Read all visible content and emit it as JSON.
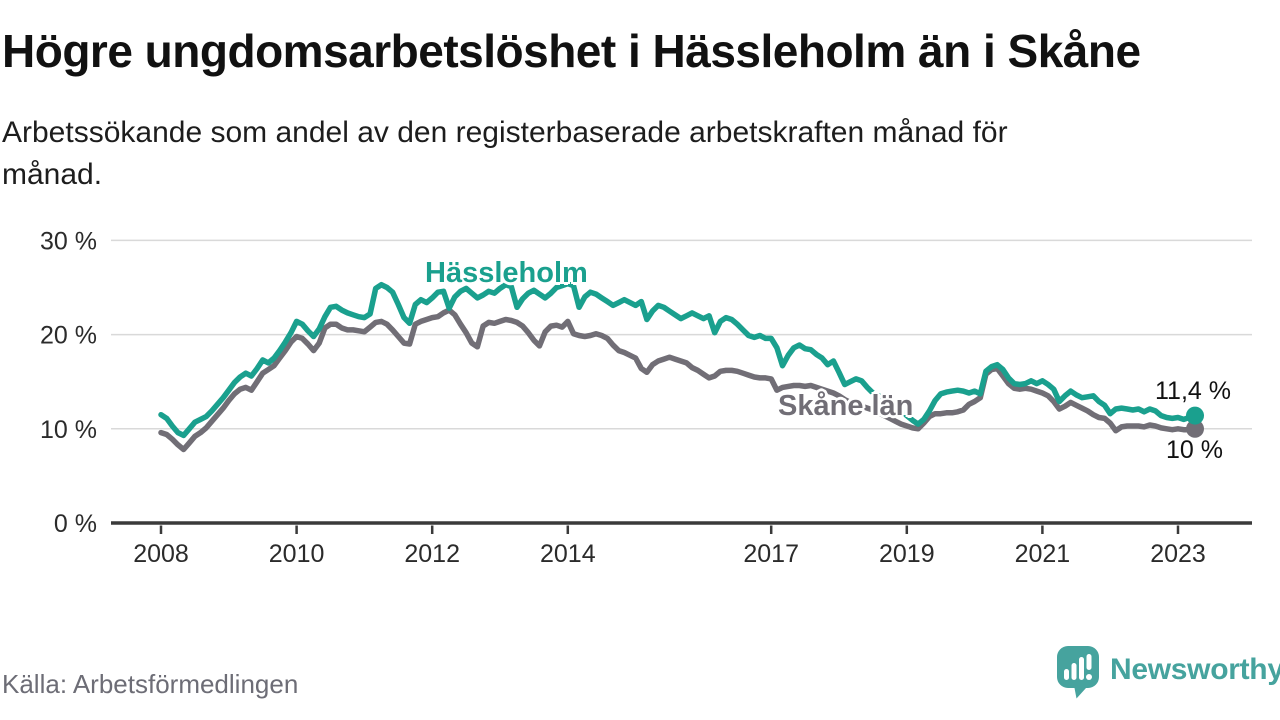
{
  "title": "Högre ungdomsarbetslöshet i Hässleholm än i Skåne",
  "subtitle_lines": [
    "Arbetssökande som andel av den registerbaserade arbetskraften månad för",
    "månad."
  ],
  "source": "Källa: Arbetsförmedlingen",
  "logo": {
    "text": "Newsworthy",
    "icon": "speech-bubble-bar-chart"
  },
  "colors": {
    "hassleholm_teal": "#1aa08e",
    "skane_gray": "#716e76",
    "grid_line": "#d9d9d9",
    "axis_line": "#3a3a3a",
    "heading_text": "#111111",
    "body_text": "#1d1d1d",
    "axis_text": "#2b2b2b",
    "value_text": "#111111",
    "source_text": "#6d6d76",
    "logo_teal": "#46a39e"
  },
  "annotations": {
    "hassleholm_label": "Hässleholm",
    "skane_label": "Skåne län",
    "end_value_hassleholm": "11,4 %",
    "end_value_skane": "10 %"
  },
  "chart_data": {
    "type": "line",
    "unit": "%",
    "frequency": "monthly",
    "x_axis": {
      "start": "2008-01",
      "end": "2023-04",
      "tick_years": [
        2008,
        2010,
        2012,
        2014,
        2017,
        2019,
        2021,
        2023
      ]
    },
    "y_axis": {
      "ticks": [
        {
          "value": 30,
          "label": "30 %"
        },
        {
          "value": 20,
          "label": "20 %"
        },
        {
          "value": 10,
          "label": "10 %"
        },
        {
          "value": 0,
          "label": "0 %"
        }
      ],
      "ylim": [
        0,
        32
      ]
    },
    "grid": "horizontal",
    "legend_position": "inline-labels",
    "series": [
      {
        "name": "Hässleholm",
        "color": "#1aa08e",
        "end_label": "11,4 %",
        "end_value": 11.4,
        "values": [
          11.5,
          11.1,
          10.3,
          9.6,
          9.3,
          10.0,
          10.7,
          11.0,
          11.3,
          11.9,
          12.6,
          13.3,
          14.1,
          14.9,
          15.5,
          15.9,
          15.6,
          16.4,
          17.3,
          17.0,
          17.5,
          18.3,
          19.2,
          20.2,
          21.4,
          21.1,
          20.4,
          19.8,
          20.6,
          21.9,
          22.9,
          23.0,
          22.6,
          22.3,
          22.1,
          21.9,
          21.8,
          22.2,
          24.9,
          25.3,
          25.0,
          24.5,
          23.2,
          21.8,
          21.2,
          23.2,
          23.7,
          23.4,
          23.9,
          24.5,
          24.6,
          22.8,
          24.0,
          24.6,
          24.9,
          24.4,
          23.9,
          24.2,
          24.6,
          24.4,
          24.9,
          25.3,
          25.1,
          22.9,
          23.8,
          24.4,
          24.7,
          24.3,
          23.9,
          24.4,
          25.0,
          25.2,
          25.4,
          25.2,
          22.9,
          24.0,
          24.5,
          24.3,
          23.9,
          23.5,
          23.1,
          23.4,
          23.7,
          23.4,
          23.1,
          23.5,
          21.6,
          22.5,
          23.1,
          22.9,
          22.5,
          22.1,
          21.7,
          22.0,
          22.3,
          22.0,
          21.7,
          22.0,
          20.2,
          21.4,
          21.8,
          21.6,
          21.1,
          20.5,
          19.9,
          19.7,
          19.9,
          19.6,
          19.6,
          18.6,
          16.7,
          17.8,
          18.6,
          18.9,
          18.5,
          18.4,
          17.9,
          17.5,
          16.8,
          17.2,
          16.0,
          14.7,
          15.0,
          15.3,
          15.1,
          14.4,
          13.8,
          13.5,
          13.2,
          12.8,
          12.4,
          11.9,
          11.4,
          10.9,
          10.5,
          11.0,
          11.9,
          13.0,
          13.7,
          13.9,
          14.0,
          14.1,
          14.0,
          13.8,
          14.0,
          13.7,
          16.1,
          16.6,
          16.8,
          16.3,
          15.4,
          14.8,
          14.7,
          14.8,
          15.1,
          14.8,
          15.1,
          14.7,
          14.2,
          12.9,
          13.5,
          14.0,
          13.6,
          13.3,
          13.4,
          13.5,
          12.9,
          12.5,
          11.6,
          12.1,
          12.2,
          12.1,
          12.0,
          12.1,
          11.8,
          12.1,
          11.9,
          11.4,
          11.2,
          11.1,
          11.2,
          11.0,
          11.2,
          11.4
        ]
      },
      {
        "name": "Skåne län",
        "color": "#716e76",
        "end_label": "10 %",
        "end_value": 10.0,
        "values": [
          9.6,
          9.4,
          8.9,
          8.3,
          7.8,
          8.5,
          9.2,
          9.6,
          10.1,
          10.8,
          11.5,
          12.2,
          13.0,
          13.7,
          14.2,
          14.4,
          14.1,
          15.0,
          15.9,
          16.3,
          16.7,
          17.5,
          18.3,
          19.2,
          19.8,
          19.6,
          19.0,
          18.3,
          19.1,
          20.7,
          21.1,
          21.1,
          20.7,
          20.5,
          20.5,
          20.4,
          20.3,
          20.8,
          21.3,
          21.4,
          21.1,
          20.5,
          19.8,
          19.1,
          19.0,
          21.1,
          21.4,
          21.6,
          21.8,
          21.9,
          22.3,
          22.6,
          22.1,
          21.1,
          20.2,
          19.1,
          18.7,
          20.9,
          21.3,
          21.2,
          21.4,
          21.6,
          21.5,
          21.3,
          20.9,
          20.2,
          19.4,
          18.8,
          20.3,
          20.9,
          21.0,
          20.8,
          21.4,
          20.1,
          19.9,
          19.8,
          19.9,
          20.1,
          19.9,
          19.6,
          18.9,
          18.3,
          18.1,
          17.8,
          17.5,
          16.4,
          16.0,
          16.8,
          17.2,
          17.4,
          17.6,
          17.4,
          17.2,
          17.0,
          16.5,
          16.2,
          15.8,
          15.4,
          15.6,
          16.1,
          16.2,
          16.2,
          16.1,
          15.9,
          15.7,
          15.5,
          15.4,
          15.4,
          15.3,
          14.1,
          14.4,
          14.5,
          14.6,
          14.6,
          14.5,
          14.6,
          14.4,
          14.2,
          14.0,
          13.8,
          13.5,
          13.1,
          12.8,
          12.6,
          12.4,
          12.2,
          12.0,
          11.7,
          11.4,
          11.1,
          10.8,
          10.5,
          10.3,
          10.1,
          10.0,
          10.6,
          11.3,
          11.6,
          11.6,
          11.7,
          11.7,
          11.8,
          12.0,
          12.6,
          12.9,
          13.3,
          15.8,
          16.3,
          16.4,
          15.6,
          14.8,
          14.3,
          14.2,
          14.3,
          14.2,
          14.0,
          13.8,
          13.5,
          12.9,
          12.1,
          12.4,
          12.8,
          12.5,
          12.2,
          11.9,
          11.5,
          11.2,
          11.1,
          10.6,
          9.8,
          10.2,
          10.3,
          10.3,
          10.3,
          10.2,
          10.4,
          10.3,
          10.1,
          10.0,
          9.9,
          10.0,
          9.9,
          9.9,
          10.0
        ]
      }
    ]
  }
}
